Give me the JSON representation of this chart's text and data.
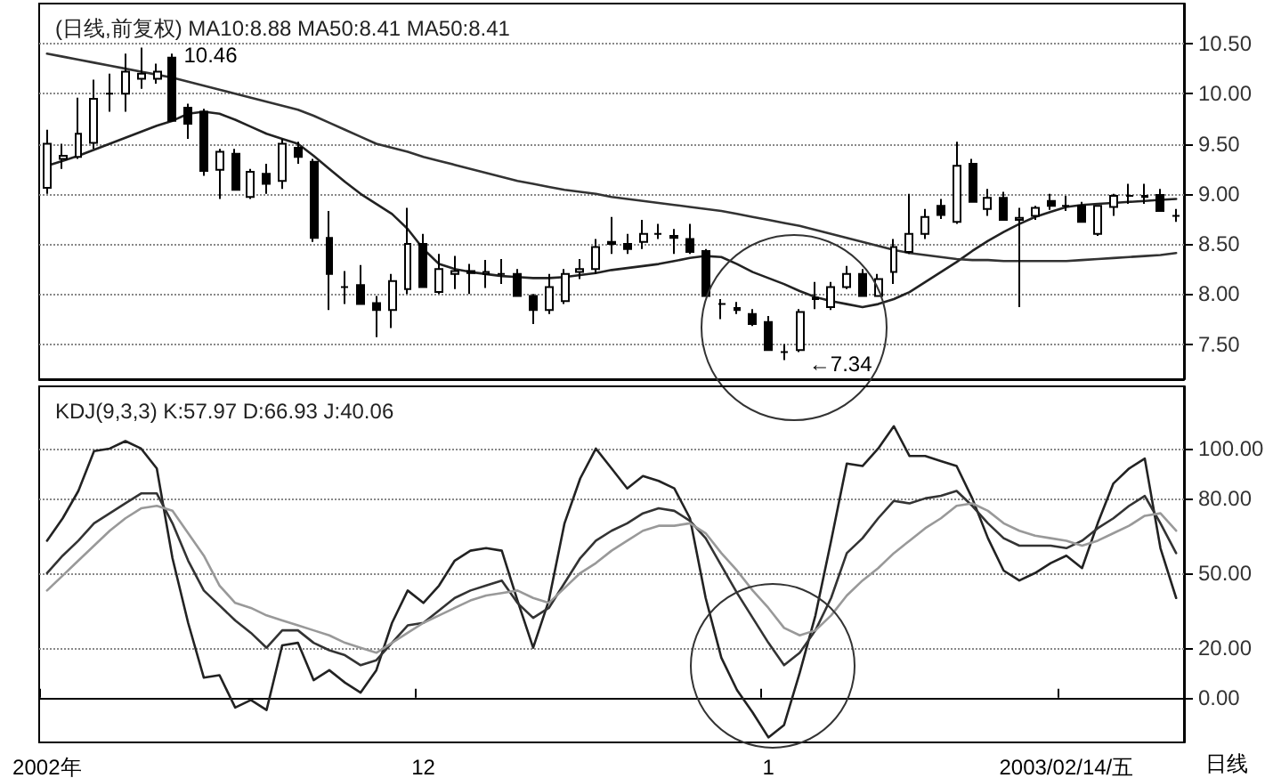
{
  "chart_data": [
    {
      "type": "candlestick",
      "title": "(日线,前复权) MA10:8.88 MA50:8.41 MA50:8.41",
      "categories": [
        null,
        null,
        null,
        null,
        null,
        null,
        null,
        null,
        null,
        null,
        null,
        null,
        null,
        null,
        null,
        null,
        null,
        null,
        null,
        null,
        null,
        null,
        null,
        null,
        null,
        null,
        null,
        null,
        null,
        null,
        null,
        null,
        null,
        null,
        null,
        null,
        null,
        null,
        null,
        null,
        null,
        null,
        null,
        null,
        null,
        null,
        null,
        null,
        null,
        null,
        null,
        null,
        null,
        null,
        null,
        null,
        null,
        null,
        null,
        null,
        null,
        null,
        null,
        null,
        null,
        null,
        null,
        null,
        null,
        null,
        null,
        null,
        null
      ],
      "series": [
        {
          "color": "#000000",
          "ohlc": [
            [
              9.06,
              9.64,
              9.0,
              9.5
            ],
            [
              9.35,
              9.5,
              9.25,
              9.38
            ],
            [
              9.37,
              9.96,
              9.35,
              9.6
            ],
            [
              9.51,
              10.14,
              9.45,
              9.95
            ],
            [
              10.0,
              10.2,
              9.82,
              10.0
            ],
            [
              10.0,
              10.4,
              9.82,
              10.22
            ],
            [
              10.15,
              10.46,
              10.05,
              10.2
            ],
            [
              10.15,
              10.3,
              10.1,
              10.22
            ],
            [
              10.36,
              10.4,
              9.73,
              9.73
            ],
            [
              9.86,
              9.9,
              9.55,
              9.7
            ],
            [
              9.82,
              9.85,
              9.18,
              9.23
            ],
            [
              9.24,
              9.45,
              8.95,
              9.42
            ],
            [
              9.4,
              9.45,
              9.04,
              9.04
            ],
            [
              8.97,
              9.25,
              8.95,
              9.22
            ],
            [
              9.2,
              9.3,
              9.0,
              9.1
            ],
            [
              9.13,
              9.55,
              9.05,
              9.5
            ],
            [
              9.46,
              9.52,
              9.3,
              9.37
            ],
            [
              9.32,
              9.35,
              8.52,
              8.56
            ],
            [
              8.56,
              8.83,
              7.84,
              8.2
            ],
            [
              8.07,
              8.23,
              7.9,
              8.07
            ],
            [
              8.09,
              8.29,
              7.9,
              7.9
            ],
            [
              7.91,
              7.98,
              7.57,
              7.84
            ],
            [
              7.84,
              8.2,
              7.66,
              8.13
            ],
            [
              8.05,
              8.86,
              8.0,
              8.5
            ],
            [
              8.5,
              8.6,
              8.07,
              8.07
            ],
            [
              8.02,
              8.4,
              8.0,
              8.25
            ],
            [
              8.2,
              8.38,
              8.05,
              8.23
            ],
            [
              8.23,
              8.3,
              8.0,
              8.21
            ],
            [
              8.2,
              8.34,
              8.06,
              8.22
            ],
            [
              8.2,
              8.35,
              8.1,
              8.2
            ],
            [
              8.2,
              8.25,
              7.98,
              7.98
            ],
            [
              7.98,
              8.0,
              7.7,
              7.84
            ],
            [
              7.84,
              8.2,
              7.8,
              8.07
            ],
            [
              7.93,
              8.25,
              7.9,
              8.2
            ],
            [
              8.22,
              8.35,
              8.15,
              8.25
            ],
            [
              8.25,
              8.55,
              8.2,
              8.47
            ],
            [
              8.52,
              8.77,
              8.4,
              8.5
            ],
            [
              8.5,
              8.6,
              8.4,
              8.45
            ],
            [
              8.52,
              8.74,
              8.45,
              8.6
            ],
            [
              8.6,
              8.7,
              8.55,
              8.6
            ],
            [
              8.58,
              8.65,
              8.4,
              8.56
            ],
            [
              8.55,
              8.7,
              8.4,
              8.42
            ],
            [
              8.43,
              8.45,
              7.98,
              7.98
            ],
            [
              7.9,
              7.95,
              7.75,
              7.9
            ],
            [
              7.86,
              7.92,
              7.8,
              7.84
            ],
            [
              7.8,
              7.85,
              7.68,
              7.7
            ],
            [
              7.72,
              7.78,
              7.44,
              7.44
            ],
            [
              7.42,
              7.5,
              7.34,
              7.42
            ],
            [
              7.44,
              7.85,
              7.42,
              7.82
            ],
            [
              7.95,
              8.12,
              7.85,
              7.96
            ],
            [
              7.87,
              8.12,
              7.84,
              8.07
            ],
            [
              8.07,
              8.28,
              8.05,
              8.2
            ],
            [
              8.2,
              8.25,
              7.98,
              7.98
            ],
            [
              7.98,
              8.2,
              7.98,
              8.15
            ],
            [
              8.22,
              8.55,
              8.1,
              8.47
            ],
            [
              8.42,
              9.0,
              8.4,
              8.6
            ],
            [
              8.6,
              8.85,
              8.55,
              8.77
            ],
            [
              8.88,
              8.95,
              8.75,
              8.79
            ],
            [
              8.72,
              9.52,
              8.7,
              9.28
            ],
            [
              9.3,
              9.35,
              8.92,
              8.92
            ],
            [
              8.85,
              9.05,
              8.78,
              8.96
            ],
            [
              8.96,
              9.02,
              8.74,
              8.74
            ],
            [
              8.74,
              8.86,
              7.87,
              8.76
            ],
            [
              8.78,
              8.88,
              8.74,
              8.86
            ],
            [
              8.93,
              9.0,
              8.84,
              8.88
            ],
            [
              8.88,
              8.98,
              8.83,
              8.88
            ],
            [
              8.88,
              8.92,
              8.72,
              8.72
            ],
            [
              8.6,
              8.88,
              8.58,
              8.88
            ],
            [
              8.87,
              9.0,
              8.78,
              8.98
            ],
            [
              8.98,
              9.1,
              8.9,
              8.98
            ],
            [
              8.97,
              9.1,
              8.9,
              8.98
            ],
            [
              8.99,
              9.05,
              8.82,
              8.83
            ],
            [
              8.78,
              8.85,
              8.72,
              8.78
            ]
          ]
        },
        {
          "type": "line",
          "color": "#222222",
          "values": [
            9.28,
            9.33,
            9.38,
            9.44,
            9.5,
            9.56,
            9.62,
            9.68,
            9.73,
            9.8,
            9.82,
            9.8,
            9.74,
            9.67,
            9.6,
            9.55,
            9.5,
            9.38,
            9.25,
            9.12,
            9.0,
            8.9,
            8.8,
            8.65,
            8.45,
            8.3,
            8.25,
            8.22,
            8.2,
            8.18,
            8.17,
            8.16,
            8.16,
            8.17,
            8.19,
            8.21,
            8.24,
            8.26,
            8.28,
            8.3,
            8.33,
            8.36,
            8.38,
            8.37,
            8.3,
            8.22,
            8.16,
            8.1,
            8.03,
            7.97,
            7.93,
            7.9,
            7.87,
            7.9,
            7.95,
            8.02,
            8.12,
            8.22,
            8.32,
            8.43,
            8.53,
            8.62,
            8.7,
            8.77,
            8.82,
            8.87,
            8.89,
            8.9,
            8.91,
            8.92,
            8.93,
            8.94,
            8.95
          ]
        },
        {
          "type": "line",
          "color": "#333333",
          "values": [
            10.4,
            10.37,
            10.34,
            10.31,
            10.28,
            10.25,
            10.22,
            10.19,
            10.16,
            10.12,
            10.08,
            10.04,
            10.0,
            9.96,
            9.92,
            9.88,
            9.84,
            9.78,
            9.71,
            9.64,
            9.57,
            9.5,
            9.46,
            9.42,
            9.37,
            9.33,
            9.29,
            9.25,
            9.21,
            9.17,
            9.13,
            9.1,
            9.07,
            9.04,
            9.02,
            9.0,
            8.97,
            8.95,
            8.93,
            8.91,
            8.89,
            8.87,
            8.85,
            8.83,
            8.8,
            8.77,
            8.74,
            8.71,
            8.68,
            8.64,
            8.6,
            8.56,
            8.52,
            8.48,
            8.44,
            8.41,
            8.39,
            8.37,
            8.35,
            8.34,
            8.34,
            8.33,
            8.33,
            8.33,
            8.33,
            8.33,
            8.34,
            8.35,
            8.36,
            8.37,
            8.38,
            8.39,
            8.41
          ]
        }
      ],
      "ylim": [
        7.15,
        10.9
      ],
      "yticks": [
        {
          "value": 7.5,
          "label": "7.50"
        },
        {
          "value": 8,
          "label": "8.00"
        },
        {
          "value": 8.5,
          "label": "8.50"
        },
        {
          "value": 9,
          "label": "9.00"
        },
        {
          "value": 9.5,
          "label": "9.50"
        },
        {
          "value": 10,
          "label": "10.00"
        },
        {
          "value": 10.5,
          "label": "10.50"
        }
      ],
      "annotations": [
        "10.46",
        "←7.34"
      ],
      "grid": "y",
      "marker": "none",
      "tick_labels": "y"
    },
    {
      "type": "line",
      "title": "KDJ(9,3,3) K:57.97 D:66.93 J:40.06",
      "categories": [
        "2002年",
        null,
        null,
        null,
        null,
        null,
        null,
        null,
        null,
        null,
        null,
        null,
        null,
        null,
        null,
        null,
        null,
        null,
        null,
        null,
        null,
        null,
        null,
        null,
        "12",
        null,
        null,
        null,
        null,
        null,
        null,
        null,
        null,
        null,
        null,
        null,
        null,
        null,
        null,
        null,
        null,
        null,
        null,
        null,
        null,
        null,
        "1",
        null,
        null,
        null,
        null,
        null,
        null,
        null,
        null,
        null,
        null,
        null,
        null,
        null,
        null,
        null,
        null,
        null,
        null,
        "2003/02/14/五",
        null,
        null,
        null,
        null,
        null,
        null,
        null
      ],
      "series": [
        {
          "color": "#222222",
          "values": [
            63,
            72,
            83,
            99,
            100,
            103,
            100,
            92,
            56,
            30,
            8,
            9,
            -4,
            -1,
            -5,
            21,
            22,
            7,
            11,
            6,
            2,
            11,
            30,
            43,
            38,
            45,
            55,
            59,
            60,
            59,
            39,
            20,
            39,
            70,
            88,
            100,
            92,
            84,
            89,
            87,
            84,
            72,
            40,
            16,
            3,
            -6,
            -16,
            -11,
            10,
            33,
            63,
            94,
            93,
            100,
            109,
            97,
            97,
            95,
            93,
            80,
            64,
            51,
            47,
            50,
            54,
            57,
            52,
            70,
            86,
            92,
            96,
            60,
            40
          ]
        },
        {
          "color": "#333333",
          "values": [
            50,
            57,
            63,
            70,
            74,
            78,
            82,
            82,
            70,
            55,
            43,
            37,
            31,
            26,
            20,
            27,
            27,
            22,
            19,
            17,
            13,
            15,
            22,
            29,
            30,
            35,
            40,
            43,
            45,
            47,
            38,
            32,
            36,
            46,
            56,
            63,
            67,
            70,
            74,
            76,
            75,
            71,
            64,
            53,
            42,
            32,
            22,
            13,
            18,
            27,
            40,
            58,
            64,
            72,
            79,
            78,
            80,
            81,
            83,
            77,
            70,
            64,
            61,
            61,
            61,
            60,
            63,
            68,
            72,
            77,
            81,
            70,
            58
          ]
        },
        {
          "color": "#999999",
          "values": [
            43,
            49,
            55,
            61,
            67,
            72,
            76,
            77,
            75,
            66,
            57,
            45,
            38,
            36,
            33,
            31,
            29,
            27,
            25,
            22,
            20,
            18,
            22,
            26,
            30,
            33,
            36,
            39,
            41,
            42,
            43,
            40,
            38,
            44,
            50,
            54,
            59,
            63,
            67,
            69,
            69,
            70,
            66,
            58,
            51,
            43,
            36,
            28,
            25,
            27,
            33,
            41,
            47,
            52,
            58,
            63,
            68,
            72,
            77,
            78,
            75,
            70,
            67,
            65,
            64,
            63,
            61,
            63,
            66,
            69,
            73,
            74,
            67
          ]
        }
      ],
      "ylim": [
        -18,
        125
      ],
      "yticks": [
        {
          "value": 0,
          "label": "0.00"
        },
        {
          "value": 20,
          "label": "20.00"
        },
        {
          "value": 50,
          "label": "50.00"
        },
        {
          "value": 80,
          "label": "80.00"
        },
        {
          "value": 100,
          "label": "100.00"
        }
      ],
      "annotations": [
        "日线"
      ],
      "grid": "y",
      "marker": "none"
    }
  ]
}
